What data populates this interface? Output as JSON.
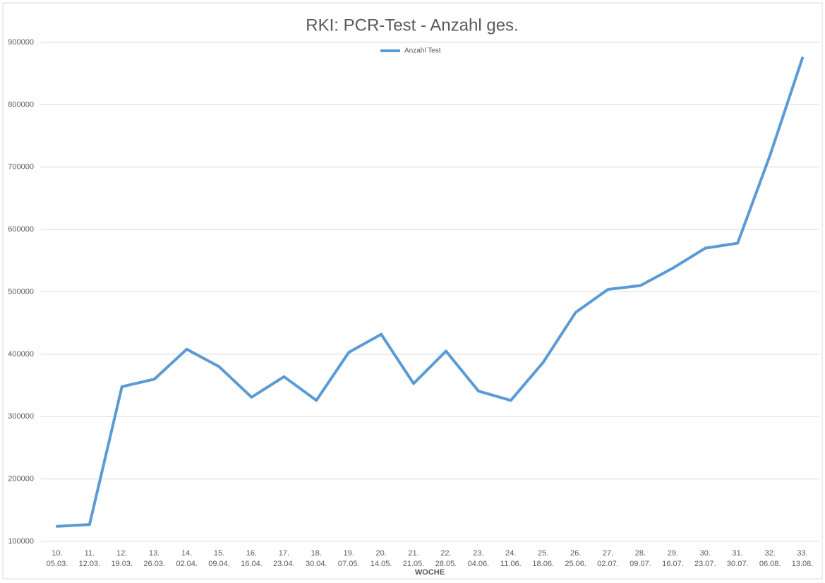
{
  "chart_data": {
    "type": "line",
    "title": "RKI: PCR-Test - Anzahl ges.",
    "x_label": "WOCHE",
    "categories": [
      [
        "10.",
        "05.03."
      ],
      [
        "11.",
        "12.03."
      ],
      [
        "12.",
        "19.03."
      ],
      [
        "13.",
        "26.03."
      ],
      [
        "14.",
        "02.04."
      ],
      [
        "15.",
        "09.04."
      ],
      [
        "16.",
        "16.04."
      ],
      [
        "17.",
        "23.04."
      ],
      [
        "18.",
        "30.04."
      ],
      [
        "19.",
        "07.05."
      ],
      [
        "20.",
        "14.05."
      ],
      [
        "21.",
        "21.05."
      ],
      [
        "22.",
        "28.05."
      ],
      [
        "23.",
        "04.06."
      ],
      [
        "24.",
        "11.06."
      ],
      [
        "25.",
        "18.06."
      ],
      [
        "26.",
        "25.06."
      ],
      [
        "27.",
        "02.07."
      ],
      [
        "28.",
        "09.07."
      ],
      [
        "29.",
        "16.07."
      ],
      [
        "30.",
        "23.07."
      ],
      [
        "31.",
        "30.07."
      ],
      [
        "32.",
        "06.08."
      ],
      [
        "33.",
        "13.08."
      ]
    ],
    "series": [
      {
        "name": "Anzahl Test",
        "color": "#5b9bd5",
        "values": [
          124000,
          127000,
          348000,
          360000,
          408000,
          380000,
          331000,
          364000,
          326000,
          403000,
          432000,
          353000,
          405000,
          341000,
          326000,
          387000,
          467000,
          504000,
          510000,
          538000,
          570000,
          578000,
          719000,
          875000
        ]
      }
    ],
    "ylim": [
      100000,
      900000
    ],
    "yticks": [
      100000,
      200000,
      300000,
      400000,
      500000,
      600000,
      700000,
      800000,
      900000
    ],
    "grid": true,
    "legend": "top"
  }
}
